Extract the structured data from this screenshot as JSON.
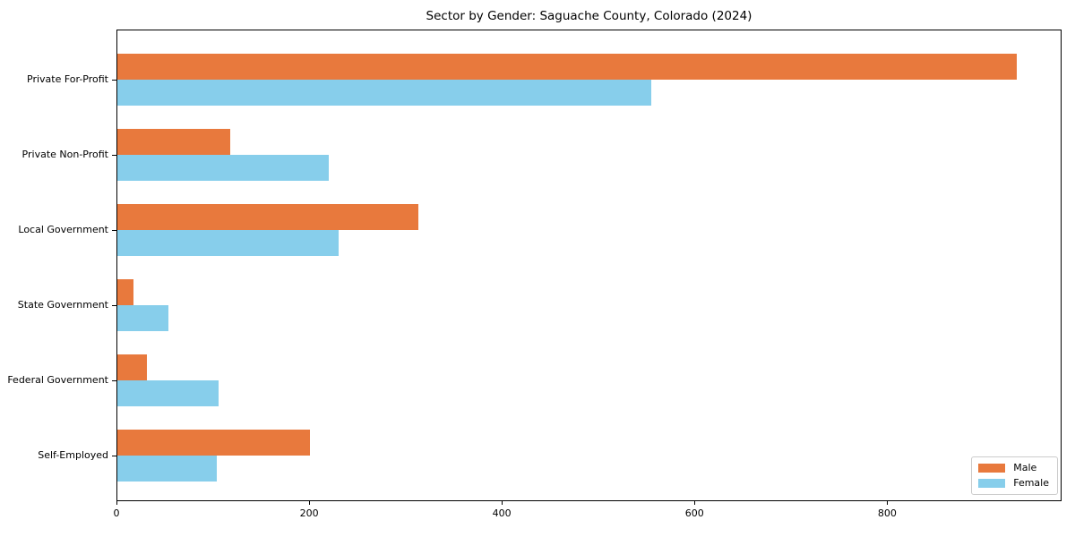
{
  "chart_data": {
    "type": "bar",
    "orientation": "horizontal",
    "title": "Sector by Gender: Saguache County, Colorado (2024)",
    "categories": [
      "Private For-Profit",
      "Private Non-Profit",
      "Local Government",
      "State Government",
      "Federal Government",
      "Self-Employed"
    ],
    "series": [
      {
        "name": "Male",
        "color": "#E8793D",
        "values": [
          935,
          117,
          313,
          17,
          31,
          200
        ]
      },
      {
        "name": "Female",
        "color": "#87CEEB",
        "values": [
          555,
          220,
          230,
          53,
          105,
          103
        ]
      }
    ],
    "xticks": [
      0,
      200,
      400,
      600,
      800
    ],
    "xlim": [
      0,
      981
    ],
    "xlabel": "",
    "ylabel": "",
    "grid": false,
    "legend_position": "lower right"
  }
}
